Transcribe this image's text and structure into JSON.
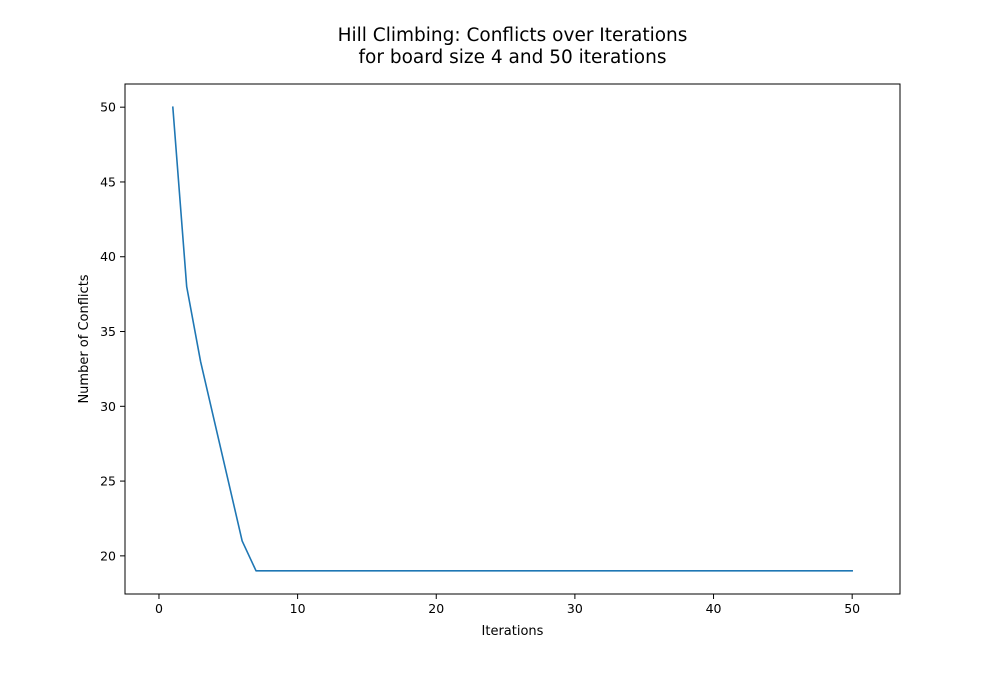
{
  "chart_data": {
    "type": "line",
    "title_lines": [
      "Hill Climbing: Conflicts over Iterations",
      "for board size 4 and 50 iterations"
    ],
    "xlabel": "Iterations",
    "ylabel": "Number of Conflicts",
    "xlim": [
      -2.45,
      53.45
    ],
    "ylim": [
      17.45,
      51.55
    ],
    "xticks": [
      0,
      10,
      20,
      30,
      40,
      50
    ],
    "yticks": [
      20,
      25,
      30,
      35,
      40,
      45,
      50
    ],
    "grid": false,
    "line_color": "#1f77b4",
    "series": [
      {
        "x": [
          1,
          2,
          3,
          4,
          5,
          6,
          7,
          8,
          9,
          10,
          11,
          12,
          13,
          14,
          15,
          16,
          17,
          18,
          19,
          20,
          21,
          22,
          23,
          24,
          25,
          26,
          27,
          28,
          29,
          30,
          31,
          32,
          33,
          34,
          35,
          36,
          37,
          38,
          39,
          40,
          41,
          42,
          43,
          44,
          45,
          46,
          47,
          48,
          49,
          50
        ],
        "values": [
          50,
          38,
          33,
          29,
          25,
          21,
          19,
          19,
          19,
          19,
          19,
          19,
          19,
          19,
          19,
          19,
          19,
          19,
          19,
          19,
          19,
          19,
          19,
          19,
          19,
          19,
          19,
          19,
          19,
          19,
          19,
          19,
          19,
          19,
          19,
          19,
          19,
          19,
          19,
          19,
          19,
          19,
          19,
          19,
          19,
          19,
          19,
          19,
          19,
          19
        ]
      }
    ]
  }
}
